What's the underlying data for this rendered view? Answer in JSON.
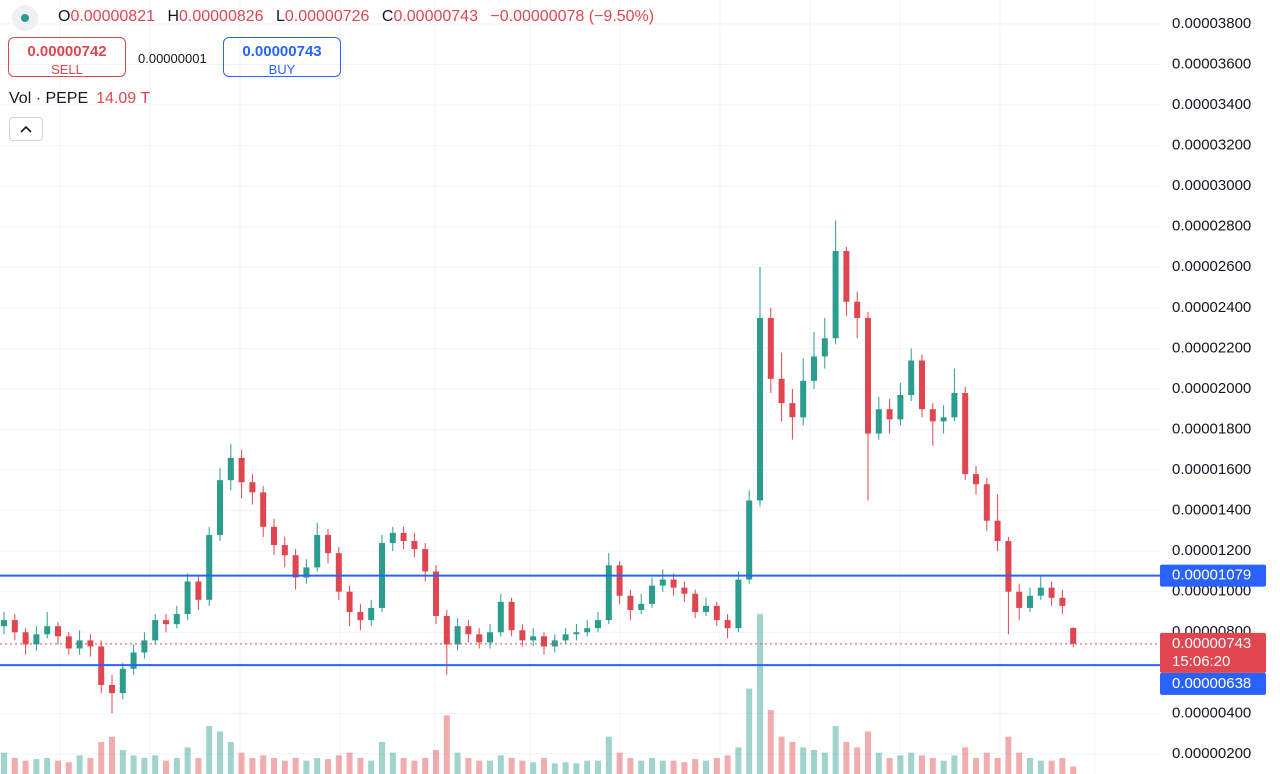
{
  "toolbar": {
    "ohlc": [
      {
        "key": "O",
        "value": "0.00000821"
      },
      {
        "key": "H",
        "value": "0.00000826"
      },
      {
        "key": "L",
        "value": "0.00000726"
      },
      {
        "key": "C",
        "value": "0.00000743"
      }
    ],
    "change": "−0.00000078 (−9.50%)",
    "sell": {
      "price": "0.00000742",
      "label": "SELL"
    },
    "spread": "0.00000001",
    "buy": {
      "price": "0.00000743",
      "label": "BUY"
    },
    "volume_legend": {
      "name": "Vol · PEPE",
      "value": "14.09 T"
    }
  },
  "chart_data": {
    "type": "candlestick",
    "up_color": "#2a9d8f",
    "down_color": "#e0464f",
    "grid": true,
    "ylim": [
      1.01e-06,
      3.918e-05
    ],
    "yticks": [
      {
        "value": 2e-06,
        "label": "0.00000200"
      },
      {
        "value": 4e-06,
        "label": "0.00000400"
      },
      {
        "value": 8e-06,
        "label": "0.00000800"
      },
      {
        "value": 1e-05,
        "label": "0.00001000"
      },
      {
        "value": 1.2e-05,
        "label": "0.00001200"
      },
      {
        "value": 1.4e-05,
        "label": "0.00001400"
      },
      {
        "value": 1.6e-05,
        "label": "0.00001600"
      },
      {
        "value": 1.8e-05,
        "label": "0.00001800"
      },
      {
        "value": 2e-05,
        "label": "0.00002000"
      },
      {
        "value": 2.2e-05,
        "label": "0.00002200"
      },
      {
        "value": 2.4e-05,
        "label": "0.00002400"
      },
      {
        "value": 2.6e-05,
        "label": "0.00002600"
      },
      {
        "value": 2.8e-05,
        "label": "0.00002800"
      },
      {
        "value": 3e-05,
        "label": "0.00003000"
      },
      {
        "value": 3.2e-05,
        "label": "0.00003200"
      },
      {
        "value": 3.4e-05,
        "label": "0.00003400"
      },
      {
        "value": 3.6e-05,
        "label": "0.00003600"
      },
      {
        "value": 3.8e-05,
        "label": "0.00003800"
      }
    ],
    "open": [
      8.3e-06,
      8.6e-06,
      8e-06,
      7.4e-06,
      7.9e-06,
      8.3e-06,
      7.8e-06,
      7.2e-06,
      7.6e-06,
      7.3e-06,
      5.4e-06,
      5e-06,
      6.2e-06,
      7e-06,
      7.6e-06,
      8.6e-06,
      8.4e-06,
      8.9e-06,
      1.05e-05,
      9.6e-06,
      1.28e-05,
      1.55e-05,
      1.66e-05,
      1.54e-05,
      1.49e-05,
      1.32e-05,
      1.23e-05,
      1.18e-05,
      1.07e-05,
      1.12e-05,
      1.28e-05,
      1.19e-05,
      1e-05,
      9e-06,
      8.6e-06,
      9.2e-06,
      1.24e-05,
      1.29e-05,
      1.25e-05,
      1.21e-05,
      1.1e-05,
      8.8e-06,
      7.4e-06,
      8.3e-06,
      7.9e-06,
      7.5e-06,
      8e-06,
      9.5e-06,
      8.1e-06,
      7.6e-06,
      7.8e-06,
      7.3e-06,
      7.6e-06,
      7.9e-06,
      8e-06,
      8.2e-06,
      8.6e-06,
      1.13e-05,
      9.8e-06,
      9.1e-06,
      9.4e-06,
      1.03e-05,
      1.06e-05,
      1.02e-05,
      9.9e-06,
      9e-06,
      9.3e-06,
      8.6e-06,
      8.2e-06,
      1.06e-05,
      1.45e-05,
      2.35e-05,
      2.05e-05,
      1.93e-05,
      1.86e-05,
      2.04e-05,
      2.16e-05,
      2.25e-05,
      2.68e-05,
      2.43e-05,
      2.35e-05,
      1.78e-05,
      1.9e-05,
      1.85e-05,
      1.97e-05,
      2.14e-05,
      1.9e-05,
      1.84e-05,
      1.86e-05,
      1.98e-05,
      1.58e-05,
      1.53e-05,
      1.35e-05,
      1.25e-05,
      1e-05,
      9.2e-06,
      9.8e-06,
      1.02e-05,
      9.7e-06,
      8.21e-06
    ],
    "high": [
      9e-06,
      8.9e-06,
      8.2e-06,
      8.3e-06,
      9e-06,
      8.5e-06,
      8e-06,
      8.1e-06,
      7.9e-06,
      7.6e-06,
      5.9e-06,
      6.5e-06,
      7.4e-06,
      8e-06,
      8.9e-06,
      8.9e-06,
      9.3e-06,
      1.09e-05,
      1.08e-05,
      1.32e-05,
      1.61e-05,
      1.73e-05,
      1.7e-05,
      1.58e-05,
      1.52e-05,
      1.36e-05,
      1.27e-05,
      1.21e-05,
      1.16e-05,
      1.34e-05,
      1.31e-05,
      1.22e-05,
      1.03e-05,
      9.4e-06,
      9.6e-06,
      1.28e-05,
      1.32e-05,
      1.32e-05,
      1.29e-05,
      1.24e-05,
      1.13e-05,
      9.1e-06,
      8.7e-06,
      8.6e-06,
      8.2e-06,
      8.4e-06,
      9.9e-06,
      9.7e-06,
      8.4e-06,
      8.2e-06,
      8e-06,
      7.9e-06,
      8.2e-06,
      8.4e-06,
      8.6e-06,
      9e-06,
      1.19e-05,
      1.15e-05,
      1.01e-05,
      9.9e-06,
      1.07e-05,
      1.11e-05,
      1.09e-05,
      1.05e-05,
      1.01e-05,
      9.7e-06,
      9.5e-06,
      8.9e-06,
      1.1e-05,
      1.5e-05,
      2.6e-05,
      2.4e-05,
      2.18e-05,
      2e-05,
      2.15e-05,
      2.28e-05,
      2.35e-05,
      2.83e-05,
      2.7e-05,
      2.48e-05,
      2.38e-05,
      1.96e-05,
      1.95e-05,
      2.03e-05,
      2.2e-05,
      2.17e-05,
      1.93e-05,
      1.92e-05,
      2.1e-05,
      2.01e-05,
      1.62e-05,
      1.56e-05,
      1.48e-05,
      1.27e-05,
      1.04e-05,
      1.02e-05,
      1.08e-05,
      1.05e-05,
      1.01e-05,
      8.26e-06
    ],
    "low": [
      7.9e-06,
      7.6e-06,
      6.9e-06,
      7.1e-06,
      7.7e-06,
      7.4e-06,
      6.9e-06,
      6.9e-06,
      6.8e-06,
      5e-06,
      4e-06,
      4.7e-06,
      5.9e-06,
      6.7e-06,
      7.4e-06,
      8e-06,
      8.2e-06,
      8.6e-06,
      9.1e-06,
      9.3e-06,
      1.25e-05,
      1.5e-05,
      1.46e-05,
      1.43e-05,
      1.27e-05,
      1.18e-05,
      1.12e-05,
      1.01e-05,
      1.04e-05,
      1.1e-05,
      1.14e-05,
      9.6e-06,
      8.3e-06,
      8.1e-06,
      8.3e-06,
      9e-06,
      1.2e-05,
      1.21e-05,
      1.17e-05,
      1.05e-05,
      8.4e-06,
      5.9e-06,
      7.1e-06,
      7.5e-06,
      7.2e-06,
      7.2e-06,
      7.8e-06,
      7.8e-06,
      7.3e-06,
      7.3e-06,
      6.9e-06,
      7e-06,
      7.4e-06,
      7.6e-06,
      7.8e-06,
      8e-06,
      8.4e-06,
      9.4e-06,
      8.6e-06,
      8.9e-06,
      9.2e-06,
      1e-05,
      9.8e-06,
      9.5e-06,
      8.7e-06,
      8.8e-06,
      8.3e-06,
      7.7e-06,
      8e-06,
      1.04e-05,
      1.42e-05,
      1.98e-05,
      1.84e-05,
      1.75e-05,
      1.82e-05,
      2e-05,
      2.1e-05,
      2.22e-05,
      2.36e-05,
      2.25e-05,
      1.45e-05,
      1.75e-05,
      1.78e-05,
      1.82e-05,
      1.94e-05,
      1.86e-05,
      1.72e-05,
      1.78e-05,
      1.84e-05,
      1.55e-05,
      1.48e-05,
      1.3e-05,
      1.2e-05,
      7.9e-06,
      8.6e-06,
      9e-06,
      9.6e-06,
      9.3e-06,
      8.9e-06,
      7.26e-06
    ],
    "close": [
      8.6e-06,
      8e-06,
      7.4e-06,
      7.9e-06,
      8.3e-06,
      7.8e-06,
      7.2e-06,
      7.6e-06,
      7.3e-06,
      5.4e-06,
      5e-06,
      6.2e-06,
      7e-06,
      7.6e-06,
      8.6e-06,
      8.4e-06,
      8.9e-06,
      1.05e-05,
      9.6e-06,
      1.28e-05,
      1.55e-05,
      1.66e-05,
      1.54e-05,
      1.49e-05,
      1.32e-05,
      1.23e-05,
      1.18e-05,
      1.07e-05,
      1.12e-05,
      1.28e-05,
      1.19e-05,
      1e-05,
      9e-06,
      8.6e-06,
      9.2e-06,
      1.24e-05,
      1.29e-05,
      1.25e-05,
      1.21e-05,
      1.1e-05,
      8.8e-06,
      7.4e-06,
      8.3e-06,
      7.9e-06,
      7.5e-06,
      8e-06,
      9.5e-06,
      8.1e-06,
      7.6e-06,
      7.8e-06,
      7.3e-06,
      7.6e-06,
      7.9e-06,
      8e-06,
      8.2e-06,
      8.6e-06,
      1.13e-05,
      9.8e-06,
      9.1e-06,
      9.4e-06,
      1.03e-05,
      1.06e-05,
      1.02e-05,
      9.9e-06,
      9e-06,
      9.3e-06,
      8.6e-06,
      8.2e-06,
      1.06e-05,
      1.45e-05,
      2.35e-05,
      2.05e-05,
      1.93e-05,
      1.86e-05,
      2.04e-05,
      2.16e-05,
      2.25e-05,
      2.68e-05,
      2.43e-05,
      2.35e-05,
      1.78e-05,
      1.9e-05,
      1.85e-05,
      1.97e-05,
      2.14e-05,
      1.9e-05,
      1.84e-05,
      1.86e-05,
      1.98e-05,
      1.58e-05,
      1.53e-05,
      1.35e-05,
      1.25e-05,
      1e-05,
      9.2e-06,
      9.8e-06,
      1.02e-05,
      9.7e-06,
      9.3e-06,
      7.43e-06
    ],
    "volume": [
      40,
      30,
      25,
      28,
      30,
      25,
      22,
      35,
      30,
      60,
      70,
      45,
      35,
      30,
      35,
      25,
      30,
      50,
      30,
      90,
      80,
      60,
      40,
      30,
      35,
      30,
      25,
      30,
      25,
      30,
      28,
      35,
      40,
      30,
      25,
      60,
      40,
      30,
      25,
      30,
      45,
      110,
      40,
      30,
      25,
      25,
      35,
      30,
      25,
      22,
      30,
      20,
      22,
      20,
      25,
      25,
      70,
      40,
      30,
      25,
      30,
      25,
      25,
      22,
      28,
      25,
      30,
      35,
      50,
      160,
      300,
      120,
      70,
      60,
      50,
      45,
      40,
      90,
      60,
      50,
      80,
      40,
      30,
      35,
      40,
      35,
      30,
      25,
      35,
      50,
      30,
      40,
      30,
      70,
      40,
      30,
      25,
      25,
      30,
      14.09
    ],
    "price_lines": [
      {
        "value": 1.079e-05,
        "label": "0.00001079",
        "color": "#2962ff"
      },
      {
        "value": 6.38e-06,
        "label": "0.00000638",
        "color": "#2962ff"
      }
    ],
    "last_price": {
      "value": 7.43e-06,
      "label": "0.00000743",
      "countdown": "15:06:20",
      "color": "#e0464f"
    }
  }
}
